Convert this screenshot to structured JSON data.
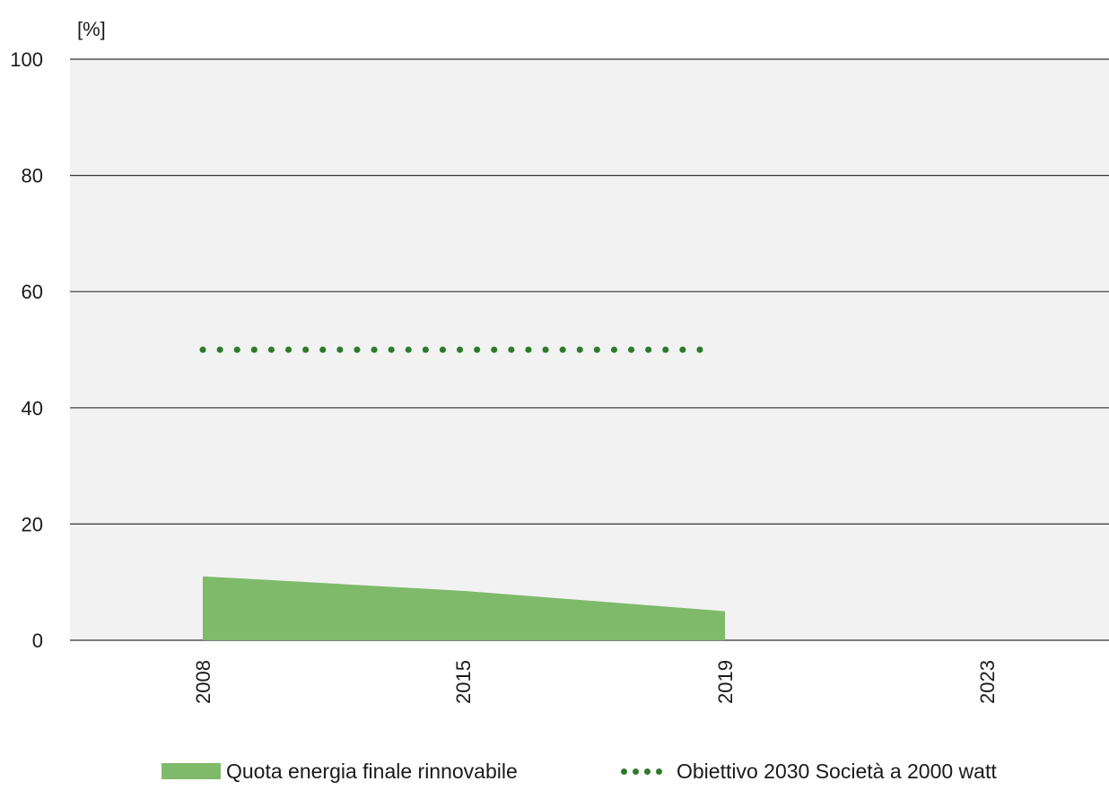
{
  "chart_data": {
    "type": "area",
    "unit_label": "[%]",
    "categories": [
      "2008",
      "2015",
      "2019",
      "2023"
    ],
    "ylim": [
      0,
      100
    ],
    "y_ticks": [
      0,
      20,
      40,
      60,
      80,
      100
    ],
    "grid": true,
    "legend_position": "bottom",
    "series": [
      {
        "name": "Quota energia finale rinnovabile",
        "type": "area",
        "color": "#7fba6b",
        "x": [
          "2008",
          "2015",
          "2019"
        ],
        "values": [
          11,
          8.5,
          5
        ]
      },
      {
        "name": "Obiettivo 2030 Società a 2000 watt",
        "type": "dotted-line",
        "color": "#2f7a2a",
        "x": [
          "2008",
          "2019"
        ],
        "values": [
          50,
          50
        ]
      }
    ]
  },
  "colors": {
    "plot_background": "#f2f2f2",
    "gridline": "#333333"
  }
}
